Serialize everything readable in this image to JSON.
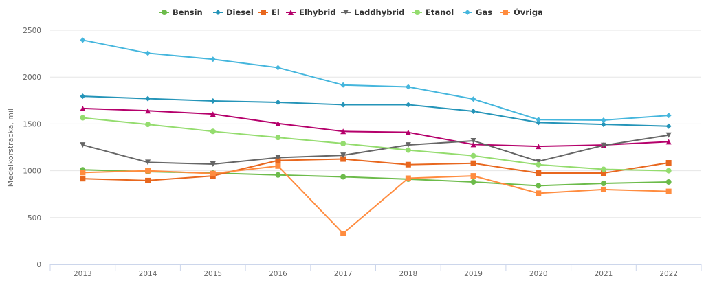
{
  "chart_data": {
    "type": "line",
    "title": "",
    "xlabel": "",
    "ylabel": "Medelkörsträcka, mil",
    "ylim": [
      0,
      2500
    ],
    "yticks": [
      0,
      500,
      1000,
      1500,
      2000,
      2500
    ],
    "ytick_labels": [
      "0",
      "500",
      "1000",
      "1500",
      "2000",
      "2500"
    ],
    "grid": true,
    "legend_position": "top-center",
    "categories": [
      "2013",
      "2014",
      "2015",
      "2016",
      "2017",
      "2018",
      "2019",
      "2020",
      "2021",
      "2022"
    ],
    "series": [
      {
        "name": "Bensin",
        "color": "#6cbb4a",
        "marker": "circle",
        "values": [
          1010,
          990,
          975,
          955,
          935,
          910,
          880,
          840,
          865,
          880
        ]
      },
      {
        "name": "Diesel",
        "color": "#2494b8",
        "marker": "diamond",
        "values": [
          1795,
          1770,
          1745,
          1730,
          1705,
          1705,
          1635,
          1515,
          1495,
          1475
        ]
      },
      {
        "name": "El",
        "color": "#e8671e",
        "marker": "square",
        "values": [
          915,
          895,
          945,
          1110,
          1125,
          1065,
          1080,
          975,
          975,
          1085
        ]
      },
      {
        "name": "Elhybrid",
        "color": "#b5006b",
        "marker": "triangle",
        "values": [
          1665,
          1640,
          1605,
          1505,
          1420,
          1410,
          1280,
          1260,
          1275,
          1310
        ]
      },
      {
        "name": "Laddhybrid",
        "color": "#666666",
        "marker": "triangle-down",
        "values": [
          1275,
          1090,
          1070,
          1140,
          1165,
          1275,
          1320,
          1100,
          1270,
          1380
        ]
      },
      {
        "name": "Etanol",
        "color": "#94dc6e",
        "marker": "circle",
        "values": [
          1565,
          1495,
          1420,
          1355,
          1290,
          1220,
          1160,
          1065,
          1015,
          1000
        ]
      },
      {
        "name": "Gas",
        "color": "#45b6dd",
        "marker": "diamond",
        "values": [
          2395,
          2255,
          2190,
          2100,
          1915,
          1895,
          1765,
          1545,
          1540,
          1590
        ]
      },
      {
        "name": "Övriga",
        "color": "#ff8c3f",
        "marker": "square",
        "values": [
          980,
          1000,
          970,
          1050,
          330,
          920,
          945,
          760,
          800,
          780
        ]
      }
    ]
  }
}
